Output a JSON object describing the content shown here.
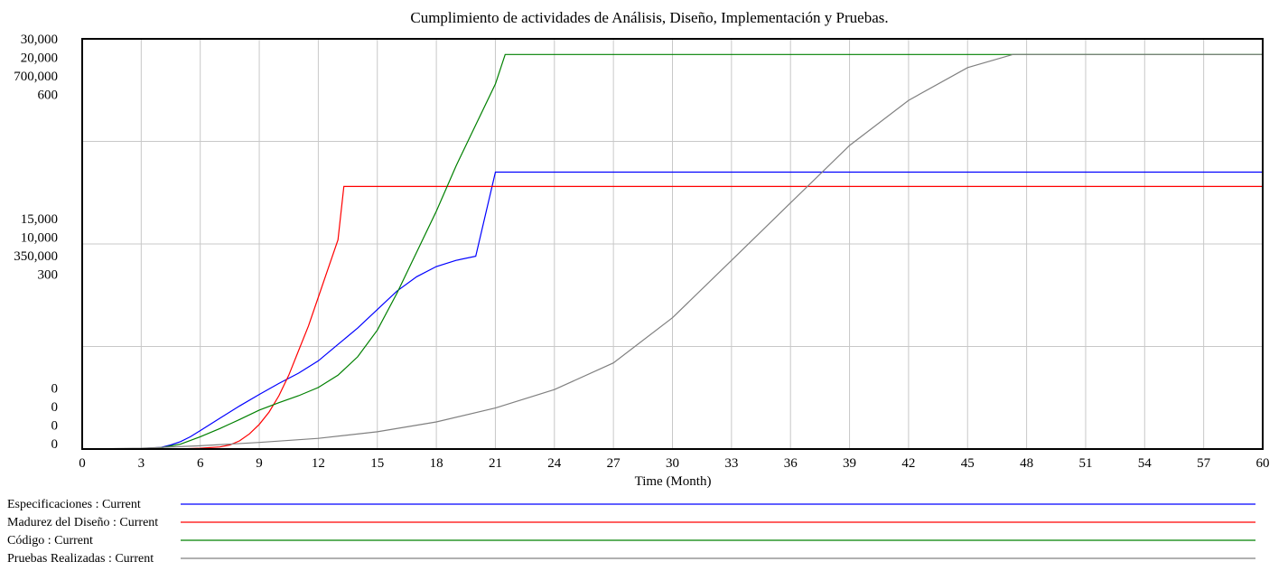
{
  "chart_data": {
    "type": "line",
    "title": "Cumplimiento de actividades de Análisis, Diseño, Implementación y Pruebas.",
    "xlabel": "Time (Month)",
    "xlim": [
      0,
      60
    ],
    "x_ticks": [
      0,
      3,
      6,
      9,
      12,
      15,
      18,
      21,
      24,
      27,
      30,
      33,
      36,
      39,
      42,
      45,
      48,
      51,
      54,
      57,
      60
    ],
    "grid": true,
    "y_tick_groups": [
      {
        "level": 1.0,
        "labels": [
          "30,000",
          "20,000",
          "700,000",
          "600"
        ]
      },
      {
        "level": 0.5,
        "labels": [
          "15,000",
          "10,000",
          "350,000",
          "300"
        ]
      },
      {
        "level": 0.0,
        "labels": [
          "0",
          "0",
          "0",
          "0"
        ]
      }
    ],
    "legend_position": "bottom",
    "colors": {
      "especificaciones": "#0000ff",
      "madurez": "#ff0000",
      "codigo": "#008000",
      "pruebas": "#808080",
      "grid": "#c8c8c8"
    },
    "series": [
      {
        "name": "Especificaciones : Current",
        "key": "especificaciones",
        "x": [
          0,
          3,
          4,
          4.5,
          5,
          5.5,
          6,
          7,
          8,
          9,
          10,
          11,
          12,
          13,
          14,
          15,
          16,
          17,
          18,
          19,
          20,
          21,
          21.5,
          60
        ],
        "y": [
          0,
          0.001,
          0.004,
          0.01,
          0.018,
          0.03,
          0.045,
          0.075,
          0.105,
          0.133,
          0.16,
          0.185,
          0.215,
          0.255,
          0.295,
          0.34,
          0.385,
          0.42,
          0.445,
          0.46,
          0.47,
          0.675,
          0.675,
          0.675
        ]
      },
      {
        "name": "Madurez del Diseño : Current",
        "key": "madurez",
        "x": [
          0,
          5,
          6,
          7,
          7.5,
          8,
          8.5,
          9,
          9.5,
          10,
          10.5,
          11,
          11.5,
          12,
          12.5,
          13,
          13.3,
          60
        ],
        "y": [
          0,
          0.0005,
          0.002,
          0.005,
          0.01,
          0.02,
          0.037,
          0.06,
          0.09,
          0.13,
          0.18,
          0.24,
          0.3,
          0.37,
          0.44,
          0.51,
          0.64,
          0.64
        ]
      },
      {
        "name": "Código : Current",
        "key": "codigo",
        "x": [
          0,
          3,
          4,
          5,
          6,
          7,
          8,
          9,
          10,
          11,
          12,
          13,
          14,
          15,
          16,
          17,
          18,
          19,
          20,
          21,
          21.5,
          60
        ],
        "y": [
          0,
          0.001,
          0.003,
          0.012,
          0.03,
          0.05,
          0.072,
          0.095,
          0.113,
          0.13,
          0.15,
          0.18,
          0.225,
          0.29,
          0.38,
          0.48,
          0.58,
          0.69,
          0.79,
          0.89,
          0.962,
          0.962
        ]
      },
      {
        "name": "Pruebas Realizadas : Current",
        "key": "pruebas",
        "x": [
          0,
          3,
          6,
          9,
          12,
          15,
          18,
          21,
          24,
          27,
          30,
          33,
          36,
          39,
          42,
          45,
          47.3,
          60
        ],
        "y": [
          0,
          0.002,
          0.008,
          0.016,
          0.026,
          0.042,
          0.066,
          0.1,
          0.145,
          0.21,
          0.32,
          0.46,
          0.6,
          0.74,
          0.85,
          0.93,
          0.962,
          0.962
        ]
      }
    ]
  }
}
